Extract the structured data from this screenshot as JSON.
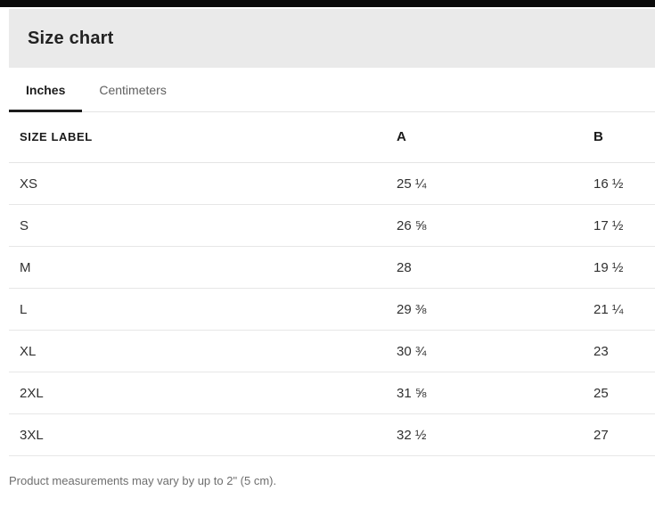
{
  "header": {
    "title": "Size chart"
  },
  "tabs": [
    {
      "label": "Inches",
      "active": true
    },
    {
      "label": "Centimeters",
      "active": false
    }
  ],
  "table": {
    "columns": {
      "size": "SIZE LABEL",
      "a": "A",
      "b": "B"
    },
    "rows": [
      {
        "size": "XS",
        "a": "25 ¼",
        "b": "16 ½"
      },
      {
        "size": "S",
        "a": "26 ⅝",
        "b": "17 ½"
      },
      {
        "size": "M",
        "a": "28",
        "b": "19 ½"
      },
      {
        "size": "L",
        "a": "29 ⅜",
        "b": "21 ¼"
      },
      {
        "size": "XL",
        "a": "30 ¾",
        "b": "23"
      },
      {
        "size": "2XL",
        "a": "31 ⅝",
        "b": "25"
      },
      {
        "size": "3XL",
        "a": "32 ½",
        "b": "27"
      }
    ]
  },
  "footer": {
    "note": "Product measurements may vary by up to 2\" (5 cm)."
  },
  "colors": {
    "header_background": "#eaeaea",
    "active_tab": "#1c1c1c",
    "divider": "#e4e4e4",
    "overlay_bar": "#0b0b0b",
    "muted_text": "#6e6e6e"
  }
}
